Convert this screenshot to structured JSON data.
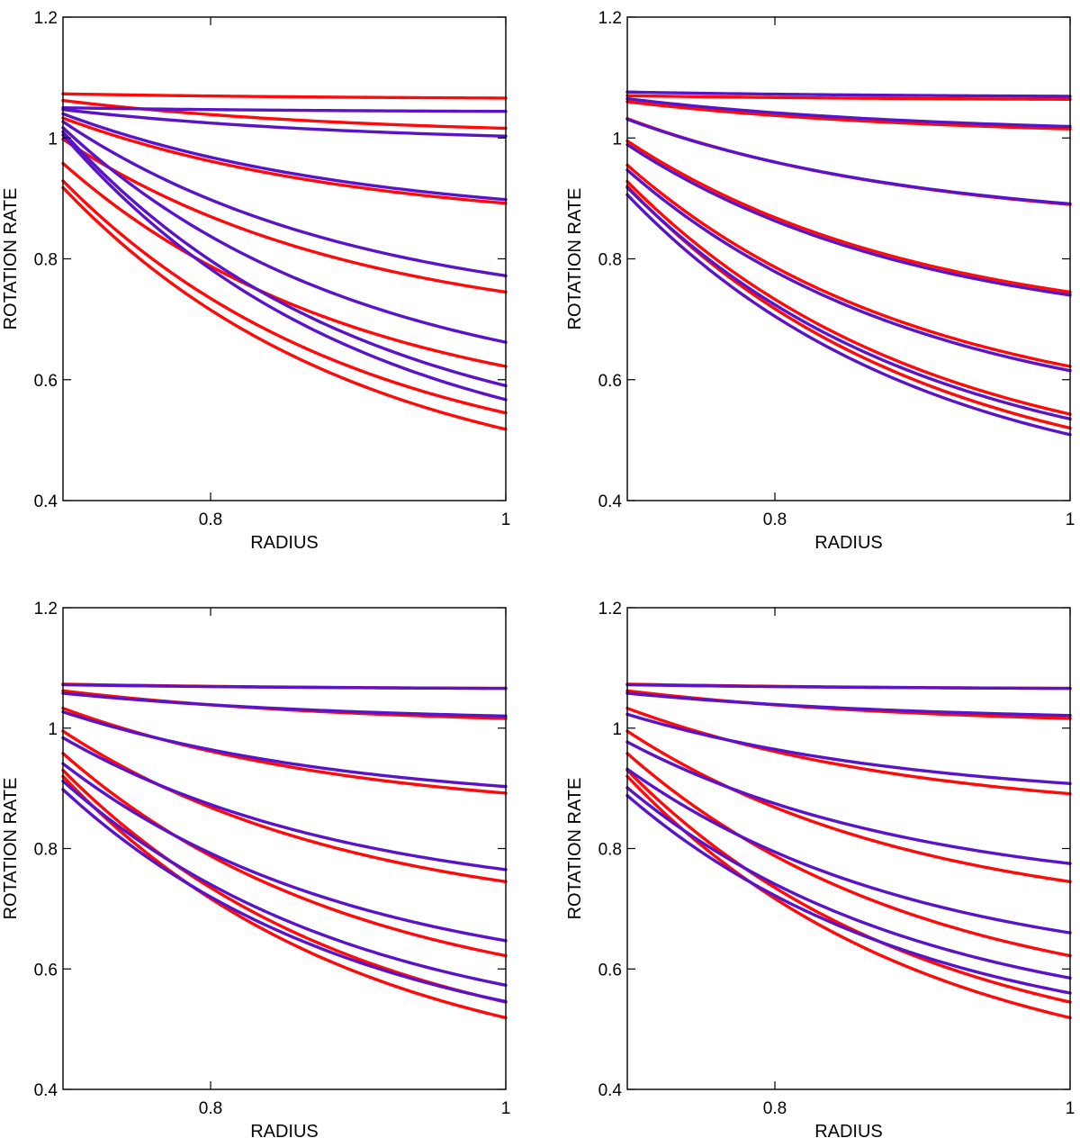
{
  "colors": {
    "red": "#ff0a0a",
    "blue": "#5a14c8",
    "axis": "#000000"
  },
  "chart_data": [
    {
      "type": "line",
      "panel": "top-left",
      "xlabel": "RADIUS",
      "ylabel": "ROTATION RATE",
      "xlim": [
        0.7,
        1.0
      ],
      "ylim": [
        0.4,
        1.2
      ],
      "xticks": [
        0.8,
        1
      ],
      "yticks": [
        0.4,
        0.6,
        0.8,
        1,
        1.2
      ],
      "xtick_labels": [
        "0.8",
        "1"
      ],
      "ytick_labels": [
        "0.4",
        "0.6",
        "0.8",
        "1",
        "1.2"
      ],
      "series": [
        {
          "name": "red-1",
          "color": "red",
          "y_start": 1.073,
          "y_end": 1.066
        },
        {
          "name": "red-2",
          "color": "red",
          "y_start": 1.062,
          "y_end": 1.016
        },
        {
          "name": "red-3",
          "color": "red",
          "y_start": 1.033,
          "y_end": 0.892
        },
        {
          "name": "red-4",
          "color": "red",
          "y_start": 0.998,
          "y_end": 0.745
        },
        {
          "name": "red-5",
          "color": "red",
          "y_start": 0.958,
          "y_end": 0.622
        },
        {
          "name": "red-6",
          "color": "red",
          "y_start": 0.929,
          "y_end": 0.545
        },
        {
          "name": "red-7",
          "color": "red",
          "y_start": 0.918,
          "y_end": 0.518
        },
        {
          "name": "blue-1",
          "color": "blue",
          "y_start": 1.05,
          "y_end": 1.044
        },
        {
          "name": "blue-2",
          "color": "blue",
          "y_start": 1.047,
          "y_end": 1.003
        },
        {
          "name": "blue-3",
          "color": "blue",
          "y_start": 1.04,
          "y_end": 0.898
        },
        {
          "name": "blue-4",
          "color": "blue",
          "y_start": 1.027,
          "y_end": 0.772
        },
        {
          "name": "blue-5",
          "color": "blue",
          "y_start": 1.017,
          "y_end": 0.662
        },
        {
          "name": "blue-6",
          "color": "blue",
          "y_start": 1.01,
          "y_end": 0.59
        },
        {
          "name": "blue-7",
          "color": "blue",
          "y_start": 1.005,
          "y_end": 0.567
        }
      ]
    },
    {
      "type": "line",
      "panel": "top-right",
      "xlabel": "RADIUS",
      "ylabel": "ROTATION RATE",
      "xlim": [
        0.7,
        1.0
      ],
      "ylim": [
        0.4,
        1.2
      ],
      "xticks": [
        0.8,
        1
      ],
      "yticks": [
        0.4,
        0.6,
        0.8,
        1,
        1.2
      ],
      "xtick_labels": [
        "0.8",
        "1"
      ],
      "ytick_labels": [
        "0.4",
        "0.6",
        "0.8",
        "1",
        "1.2"
      ],
      "series": [
        {
          "name": "red-1",
          "color": "red",
          "y_start": 1.07,
          "y_end": 1.064
        },
        {
          "name": "red-2",
          "color": "red",
          "y_start": 1.06,
          "y_end": 1.015
        },
        {
          "name": "red-3",
          "color": "red",
          "y_start": 1.032,
          "y_end": 0.89
        },
        {
          "name": "red-4",
          "color": "red",
          "y_start": 0.995,
          "y_end": 0.745
        },
        {
          "name": "red-5",
          "color": "red",
          "y_start": 0.955,
          "y_end": 0.622
        },
        {
          "name": "red-6",
          "color": "red",
          "y_start": 0.928,
          "y_end": 0.543
        },
        {
          "name": "red-7",
          "color": "red",
          "y_start": 0.92,
          "y_end": 0.52
        },
        {
          "name": "blue-1",
          "color": "blue",
          "y_start": 1.076,
          "y_end": 1.069
        },
        {
          "name": "blue-2",
          "color": "blue",
          "y_start": 1.065,
          "y_end": 1.019
        },
        {
          "name": "blue-3",
          "color": "blue",
          "y_start": 1.031,
          "y_end": 0.891
        },
        {
          "name": "blue-4",
          "color": "blue",
          "y_start": 0.989,
          "y_end": 0.74
        },
        {
          "name": "blue-5",
          "color": "blue",
          "y_start": 0.947,
          "y_end": 0.615
        },
        {
          "name": "blue-6",
          "color": "blue",
          "y_start": 0.918,
          "y_end": 0.535
        },
        {
          "name": "blue-7",
          "color": "blue",
          "y_start": 0.906,
          "y_end": 0.509
        }
      ]
    },
    {
      "type": "line",
      "panel": "bottom-left",
      "xlabel": "RADIUS",
      "ylabel": "ROTATION RATE",
      "xlim": [
        0.7,
        1.0
      ],
      "ylim": [
        0.4,
        1.2
      ],
      "xticks": [
        0.8,
        1
      ],
      "yticks": [
        0.4,
        0.6,
        0.8,
        1,
        1.2
      ],
      "xtick_labels": [
        "0.8",
        "1"
      ],
      "ytick_labels": [
        "0.4",
        "0.6",
        "0.8",
        "1",
        "1.2"
      ],
      "series": [
        {
          "name": "red-1",
          "color": "red",
          "y_start": 1.073,
          "y_end": 1.066
        },
        {
          "name": "red-2",
          "color": "red",
          "y_start": 1.062,
          "y_end": 1.016
        },
        {
          "name": "red-3",
          "color": "red",
          "y_start": 1.033,
          "y_end": 0.892
        },
        {
          "name": "red-4",
          "color": "red",
          "y_start": 0.995,
          "y_end": 0.745
        },
        {
          "name": "red-5",
          "color": "red",
          "y_start": 0.958,
          "y_end": 0.622
        },
        {
          "name": "red-6",
          "color": "red",
          "y_start": 0.93,
          "y_end": 0.545
        },
        {
          "name": "red-7",
          "color": "red",
          "y_start": 0.92,
          "y_end": 0.519
        },
        {
          "name": "blue-1",
          "color": "blue",
          "y_start": 1.072,
          "y_end": 1.066
        },
        {
          "name": "blue-2",
          "color": "blue",
          "y_start": 1.058,
          "y_end": 1.02
        },
        {
          "name": "blue-3",
          "color": "blue",
          "y_start": 1.027,
          "y_end": 0.903
        },
        {
          "name": "blue-4",
          "color": "blue",
          "y_start": 0.984,
          "y_end": 0.765
        },
        {
          "name": "blue-5",
          "color": "blue",
          "y_start": 0.941,
          "y_end": 0.647
        },
        {
          "name": "blue-6",
          "color": "blue",
          "y_start": 0.912,
          "y_end": 0.573
        },
        {
          "name": "blue-7",
          "color": "blue",
          "y_start": 0.898,
          "y_end": 0.546
        }
      ]
    },
    {
      "type": "line",
      "panel": "bottom-right",
      "xlabel": "RADIUS",
      "ylabel": "ROTATION RATE",
      "xlim": [
        0.7,
        1.0
      ],
      "ylim": [
        0.4,
        1.2
      ],
      "xticks": [
        0.8,
        1
      ],
      "yticks": [
        0.4,
        0.6,
        0.8,
        1,
        1.2
      ],
      "xtick_labels": [
        "0.8",
        "1"
      ],
      "ytick_labels": [
        "0.4",
        "0.6",
        "0.8",
        "1",
        "1.2"
      ],
      "series": [
        {
          "name": "red-1",
          "color": "red",
          "y_start": 1.073,
          "y_end": 1.066
        },
        {
          "name": "red-2",
          "color": "red",
          "y_start": 1.062,
          "y_end": 1.016
        },
        {
          "name": "red-3",
          "color": "red",
          "y_start": 1.033,
          "y_end": 0.891
        },
        {
          "name": "red-4",
          "color": "red",
          "y_start": 0.995,
          "y_end": 0.745
        },
        {
          "name": "red-5",
          "color": "red",
          "y_start": 0.958,
          "y_end": 0.622
        },
        {
          "name": "red-6",
          "color": "red",
          "y_start": 0.93,
          "y_end": 0.545
        },
        {
          "name": "red-7",
          "color": "red",
          "y_start": 0.92,
          "y_end": 0.519
        },
        {
          "name": "blue-1",
          "color": "blue",
          "y_start": 1.072,
          "y_end": 1.066
        },
        {
          "name": "blue-2",
          "color": "blue",
          "y_start": 1.058,
          "y_end": 1.021
        },
        {
          "name": "blue-3",
          "color": "blue",
          "y_start": 1.023,
          "y_end": 0.908
        },
        {
          "name": "blue-4",
          "color": "blue",
          "y_start": 0.977,
          "y_end": 0.775
        },
        {
          "name": "blue-5",
          "color": "blue",
          "y_start": 0.932,
          "y_end": 0.66
        },
        {
          "name": "blue-6",
          "color": "blue",
          "y_start": 0.901,
          "y_end": 0.585
        },
        {
          "name": "blue-7",
          "color": "blue",
          "y_start": 0.888,
          "y_end": 0.56
        }
      ]
    }
  ]
}
